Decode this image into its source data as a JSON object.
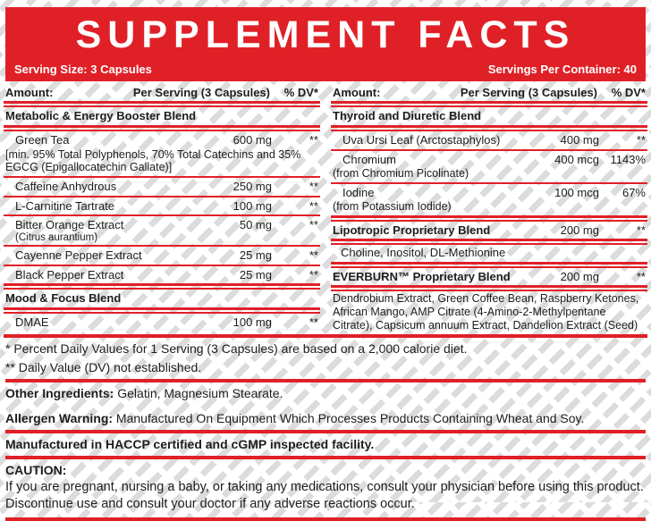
{
  "colors": {
    "red": "#e02027",
    "stripe": "#dcdcdc",
    "text": "#1d1d1b",
    "banner_text": "#ffffff"
  },
  "header": {
    "title": "SUPPLEMENT FACTS",
    "serving_size": "Serving Size: 3 Capsules",
    "servings_per_container": "Servings Per Container: 40"
  },
  "table_header": {
    "amount": "Amount:",
    "per_serving": "Per Serving (3 Capsules)",
    "dv": "% DV*"
  },
  "left": {
    "blend1_title": "Metabolic & Energy Booster Blend",
    "green_tea": {
      "name": "Green Tea",
      "amount": "600 mg",
      "dv": "**"
    },
    "green_tea_note": "[min. 95% Total Polyphenols, 70% Total Catechins and 35% EGCG (Epigallocatechin Gallate)]",
    "caffeine": {
      "name": "Caffeine Anhydrous",
      "amount": "250 mg",
      "dv": "**"
    },
    "l_carnitine": {
      "name": "L-Carnitine Tartrate",
      "amount": "100 mg",
      "dv": "**"
    },
    "bitter_orange": {
      "name": "Bitter Orange Extract",
      "sub": "(Citrus aurantium)",
      "amount": "50 mg",
      "dv": "**"
    },
    "cayenne": {
      "name": "Cayenne Pepper Extract",
      "amount": "25 mg",
      "dv": "**"
    },
    "black_pepper": {
      "name": "Black Pepper Extract",
      "amount": "25 mg",
      "dv": "**"
    },
    "blend2_title": "Mood & Focus Blend",
    "dmae": {
      "name": "DMAE",
      "amount": "100 mg",
      "dv": "**"
    }
  },
  "right": {
    "blend1_title": "Thyroid and Diuretic Blend",
    "uva_ursi": {
      "name": "Uva Ursi Leaf (Arctostaphylos)",
      "amount": "400 mg",
      "dv": "**"
    },
    "chromium": {
      "name": "Chromium",
      "sub": "(from Chromium Picolinate)",
      "amount": "400 mcg",
      "dv": "1143%"
    },
    "iodine": {
      "name": "Iodine",
      "sub": "(from Potassium Iodide)",
      "amount": "100 mcg",
      "dv": "67%"
    },
    "lipotropic": {
      "name": "Lipotropic Proprietary Blend",
      "amount": "200 mg",
      "dv": "**"
    },
    "lipotropic_contents": "Choline, Inositol, DL-Methionine",
    "everburn": {
      "name": "EVERBURN™ Proprietary Blend",
      "amount": "200 mg",
      "dv": "**"
    },
    "everburn_contents": "Dendrobium Extract, Green Coffee Bean, Raspberry Ketones, African Mango, AMP Citrate (4-Amino-2-Methylpentane Citrate), Capsicum annuum Extract, Dandelion Extract (Seed)"
  },
  "footnotes": {
    "dv_note": "* Percent Daily Values for 1 Serving (3 Capsules) are based on a 2,000 calorie diet.",
    "dv_not_established": "** Daily Value (DV) not established.",
    "other_ingredients_label": "Other Ingredients:",
    "other_ingredients": " Gelatin, Magnesium Stearate.",
    "allergen_label": "Allergen Warning:",
    "allergen": " Manufactured On Equipment Which Processes Products Containing Wheat and Soy.",
    "manufactured": "Manufactured in HACCP certified and cGMP inspected facility.",
    "caution_label": "CAUTION:",
    "caution": "If you are pregnant, nursing a baby, or taking any medications, consult your physician before using this product. Discontinue use and consult your doctor if any adverse reactions occur."
  }
}
